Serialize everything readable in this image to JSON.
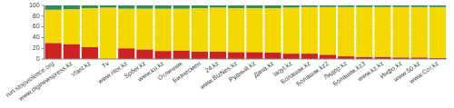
{
  "chart_data": {
    "type": "bar",
    "stacked": true,
    "categories": [
      "run.stopviolence.org",
      "www.diginewspress.kz",
      "Vlast.kz",
      "Tv",
      "www.ritor.kz",
      "Spбег.kz",
      "www.ku.kz",
      "Отличник",
      "Бизнесмен",
      "24.kz",
      "www.BizNes.kz",
      "Рудный.kz",
      "Дана.kz",
      "laqyt.kz",
      "Болашак.kz",
      "Болашак.kz2",
      "Лидер.kz",
      "Болашак.kz3",
      "www.kz.kz",
      "Инфо.kz",
      "www.50.kz",
      "www.Сот.kz"
    ],
    "series": [
      {
        "color": "#cc2222",
        "values": [
          30,
          28,
          22,
          0,
          20,
          18,
          15,
          16,
          14,
          14,
          13,
          13,
          12,
          10,
          10,
          8,
          5,
          4,
          4,
          3,
          3,
          2
        ]
      },
      {
        "color": "#f5d800",
        "values": [
          62,
          65,
          73,
          96,
          74,
          76,
          79,
          78,
          81,
          82,
          82,
          82,
          83,
          86,
          87,
          89,
          92,
          93,
          93,
          94,
          94,
          95
        ]
      },
      {
        "color": "#2e8b57",
        "values": [
          8,
          7,
          5,
          4,
          6,
          6,
          6,
          6,
          5,
          4,
          5,
          5,
          5,
          4,
          3,
          3,
          3,
          3,
          3,
          3,
          3,
          3
        ]
      }
    ],
    "ylim": [
      0,
      100
    ],
    "yticks": [
      0,
      20,
      40,
      60,
      80,
      100
    ]
  }
}
